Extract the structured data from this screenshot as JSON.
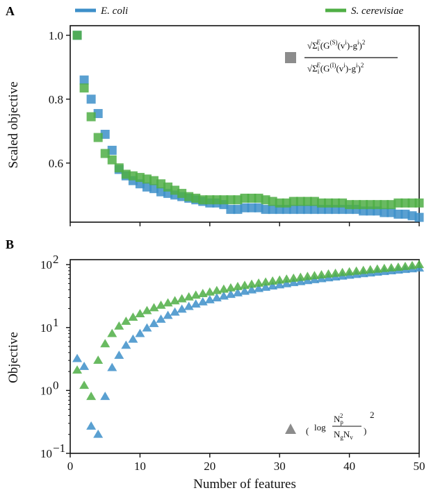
{
  "chart_data": [
    {
      "panel": "A",
      "type": "scatter",
      "marker": "square",
      "xlabel": "",
      "ylabel": "Scaled objective",
      "xlim": [
        0,
        50
      ],
      "ylim": [
        0.415,
        1.03
      ],
      "yticks": [
        0.6,
        0.8,
        1.0
      ],
      "ytick_labels": [
        "0.6",
        "0.8",
        "1.0"
      ],
      "xticks": [
        0,
        10,
        20,
        30,
        40,
        50
      ],
      "annotation_marker": "grey-square",
      "annotation": {
        "num_sqrt": "√",
        "num_body": "Σ",
        "num_sub": "i",
        "num_sup": "E",
        "num_mid": "(G",
        "num_g_sup": "(S)",
        "num_tail": "(v",
        "num_v_sup": "i",
        "num_close": ")-g",
        "num_g2_sup": "i",
        "num_end": ")",
        "num_sq": "2",
        "den_g_sup": "(I)"
      },
      "series": [
        {
          "name": "E. coli",
          "color": "#3d8fc9",
          "x": [
            1,
            2,
            3,
            4,
            5,
            6,
            7,
            8,
            9,
            10,
            11,
            12,
            13,
            14,
            15,
            16,
            17,
            18,
            19,
            20,
            21,
            22,
            23,
            24,
            25,
            26,
            27,
            28,
            29,
            30,
            31,
            32,
            33,
            34,
            35,
            36,
            37,
            38,
            39,
            40,
            41,
            42,
            43,
            44,
            45,
            46,
            47,
            48,
            49,
            50
          ],
          "y": [
            1.0,
            0.86,
            0.8,
            0.755,
            0.69,
            0.64,
            0.58,
            0.56,
            0.545,
            0.535,
            0.525,
            0.52,
            0.51,
            0.505,
            0.5,
            0.495,
            0.49,
            0.485,
            0.48,
            0.475,
            0.475,
            0.47,
            0.455,
            0.455,
            0.46,
            0.46,
            0.46,
            0.455,
            0.455,
            0.455,
            0.455,
            0.455,
            0.455,
            0.455,
            0.455,
            0.455,
            0.455,
            0.455,
            0.455,
            0.455,
            0.455,
            0.45,
            0.45,
            0.45,
            0.445,
            0.445,
            0.44,
            0.44,
            0.435,
            0.43
          ]
        },
        {
          "name": "S. cerevisiae",
          "color": "#4fae45",
          "x": [
            1,
            2,
            3,
            4,
            5,
            6,
            7,
            8,
            9,
            10,
            11,
            12,
            13,
            14,
            15,
            16,
            17,
            18,
            19,
            20,
            21,
            22,
            23,
            24,
            25,
            26,
            27,
            28,
            29,
            30,
            31,
            32,
            33,
            34,
            35,
            36,
            37,
            38,
            39,
            40,
            41,
            42,
            43,
            44,
            45,
            46,
            47,
            48,
            49,
            50
          ],
          "y": [
            1.0,
            0.835,
            0.745,
            0.68,
            0.63,
            0.61,
            0.585,
            0.565,
            0.56,
            0.555,
            0.55,
            0.545,
            0.535,
            0.525,
            0.515,
            0.505,
            0.495,
            0.49,
            0.485,
            0.485,
            0.485,
            0.485,
            0.485,
            0.485,
            0.49,
            0.49,
            0.49,
            0.485,
            0.48,
            0.475,
            0.475,
            0.48,
            0.48,
            0.48,
            0.48,
            0.475,
            0.475,
            0.475,
            0.475,
            0.47,
            0.47,
            0.47,
            0.47,
            0.47,
            0.47,
            0.47,
            0.475,
            0.475,
            0.475,
            0.475
          ]
        }
      ]
    },
    {
      "panel": "B",
      "type": "scatter",
      "marker": "triangle",
      "xlabel": "Number of features",
      "ylabel": "Objective",
      "yscale": "log",
      "xlim": [
        0,
        50
      ],
      "ylim": [
        0.1,
        120
      ],
      "xticks": [
        0,
        10,
        20,
        30,
        40,
        50
      ],
      "xtick_labels": [
        "0",
        "10",
        "20",
        "30",
        "40",
        "50"
      ],
      "yticks": [
        0.1,
        1,
        10,
        100
      ],
      "ytick_labels": [
        {
          "base": "10",
          "exp": "−1"
        },
        {
          "base": "10",
          "exp": "0"
        },
        {
          "base": "10",
          "exp": "1"
        },
        {
          "base": "10",
          "exp": "2"
        }
      ],
      "annotation_marker": "grey-triangle",
      "annotation": {
        "log": "log",
        "num": "N",
        "num_sub": "p",
        "num_sup": "2",
        "den": "N",
        "den_sub1": "g",
        "den_mid": "N",
        "den_sub2": "v",
        "outer_sup": "2"
      },
      "series": [
        {
          "name": "E. coli",
          "color": "#3d8fc9",
          "x": [
            1,
            2,
            3,
            4,
            5,
            6,
            7,
            8,
            9,
            10,
            11,
            12,
            13,
            14,
            15,
            16,
            17,
            18,
            19,
            20,
            21,
            22,
            23,
            24,
            25,
            26,
            27,
            28,
            29,
            30,
            31,
            32,
            33,
            34,
            35,
            36,
            37,
            38,
            39,
            40,
            41,
            42,
            43,
            44,
            45,
            46,
            47,
            48,
            49,
            50
          ],
          "y": [
            3.2,
            2.4,
            0.27,
            0.2,
            0.8,
            2.3,
            3.6,
            5.2,
            6.5,
            8.0,
            9.8,
            11.5,
            13.5,
            15.5,
            17.5,
            19.5,
            21.5,
            23.5,
            25.5,
            27.5,
            29.5,
            31.5,
            33.5,
            35.5,
            37.5,
            39.5,
            41.5,
            43.5,
            45.5,
            47.5,
            49.5,
            51.5,
            53.5,
            55.5,
            57.5,
            59.5,
            61.5,
            63.5,
            65.5,
            67.5,
            69.5,
            71.5,
            73.5,
            75.5,
            77.5,
            79.5,
            81.5,
            83.5,
            85.5,
            88
          ]
        },
        {
          "name": "S. cerevisiae",
          "color": "#4fae45",
          "x": [
            1,
            2,
            3,
            4,
            5,
            6,
            7,
            8,
            9,
            10,
            11,
            12,
            13,
            14,
            15,
            16,
            17,
            18,
            19,
            20,
            21,
            22,
            23,
            24,
            25,
            26,
            27,
            28,
            29,
            30,
            31,
            32,
            33,
            34,
            35,
            36,
            37,
            38,
            39,
            40,
            41,
            42,
            43,
            44,
            45,
            46,
            47,
            48,
            49,
            50
          ],
          "y": [
            2.1,
            1.2,
            0.8,
            3.0,
            5.5,
            8.0,
            10.5,
            12.5,
            14.5,
            16.5,
            18.5,
            20.5,
            22.5,
            24.5,
            26.5,
            28.5,
            30.5,
            32.5,
            34.5,
            36.5,
            38.5,
            40.5,
            42.5,
            44.5,
            46.5,
            48.5,
            50.5,
            52.5,
            54.5,
            56.5,
            58.5,
            60.5,
            62.5,
            64.5,
            66.5,
            68.5,
            70.5,
            72.5,
            74.5,
            76.5,
            78.5,
            80.5,
            82.5,
            84.5,
            86.5,
            88.5,
            90.5,
            93,
            96,
            100
          ]
        }
      ]
    }
  ]
}
